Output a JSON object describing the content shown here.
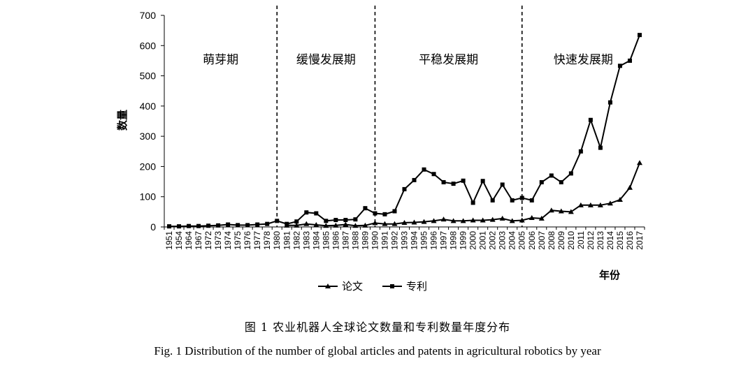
{
  "chart_data": {
    "type": "line",
    "title": "",
    "xlabel": "年份",
    "ylabel": "数量",
    "ylim": [
      0,
      700
    ],
    "yticks": [
      0,
      100,
      200,
      300,
      400,
      500,
      600,
      700
    ],
    "grid": false,
    "legend_placement": "bottom",
    "categories": [
      "1951",
      "1954",
      "1964",
      "1967",
      "1972",
      "1973",
      "1974",
      "1975",
      "1976",
      "1977",
      "1978",
      "1980",
      "1981",
      "1982",
      "1983",
      "1984",
      "1985",
      "1986",
      "1987",
      "1988",
      "1989",
      "1990",
      "1991",
      "1992",
      "1993",
      "1994",
      "1995",
      "1996",
      "1997",
      "1998",
      "1999",
      "2000",
      "2001",
      "2002",
      "2003",
      "2004",
      "2005",
      "2006",
      "2007",
      "2008",
      "2009",
      "2010",
      "2011",
      "2012",
      "2013",
      "2014",
      "2015",
      "2016",
      "2017"
    ],
    "series": [
      {
        "name": "论文",
        "marker": "triangle",
        "color": "#000000",
        "values": [
          null,
          null,
          null,
          null,
          null,
          null,
          null,
          null,
          null,
          null,
          null,
          null,
          5,
          5,
          10,
          7,
          4,
          5,
          8,
          4,
          5,
          13,
          10,
          10,
          14,
          15,
          17,
          20,
          25,
          20,
          20,
          22,
          22,
          24,
          28,
          20,
          22,
          30,
          28,
          55,
          52,
          50,
          72,
          72,
          72,
          78,
          90,
          130,
          212
        ]
      },
      {
        "name": "专利",
        "marker": "square",
        "color": "#000000",
        "values": [
          2,
          2,
          3,
          3,
          4,
          5,
          8,
          6,
          6,
          8,
          10,
          20,
          10,
          18,
          48,
          45,
          20,
          23,
          23,
          25,
          62,
          45,
          42,
          52,
          125,
          155,
          190,
          175,
          148,
          143,
          153,
          80,
          152,
          88,
          140,
          88,
          96,
          88,
          148,
          170,
          148,
          177,
          250,
          354,
          262,
          412,
          533,
          550,
          635
        ]
      }
    ],
    "phase_boundaries": [
      "1980",
      "1990",
      "2005"
    ],
    "phases": [
      "萌芽期",
      "缓慢发展期",
      "平稳发展期",
      "快速发展期"
    ]
  },
  "caption_cn": "图 1    农业机器人全球论文数量和专利数量年度分布",
  "caption_en": "Fig. 1    Distribution of the number of global articles and patents in agricultural robotics by year"
}
